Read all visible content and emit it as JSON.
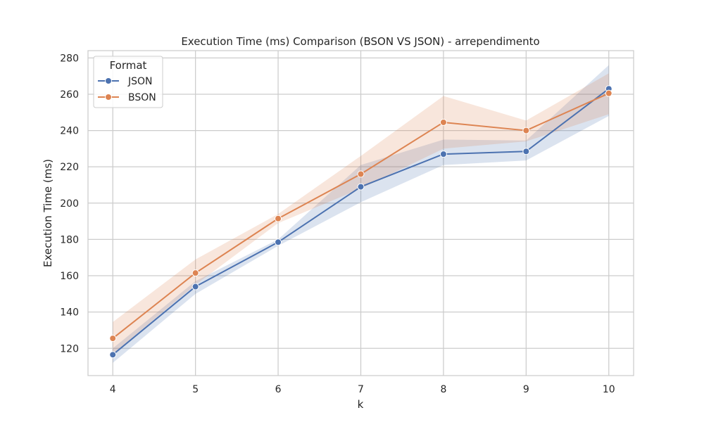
{
  "chart_data": {
    "type": "line",
    "title": "Execution Time (ms) Comparison (BSON VS JSON) - arrependimento",
    "xlabel": "k",
    "ylabel": "Execution Time (ms)",
    "x": [
      4,
      5,
      6,
      7,
      8,
      9,
      10
    ],
    "xlim": [
      3.7,
      10.3
    ],
    "ylim": [
      105,
      284
    ],
    "yticks": [
      120,
      140,
      160,
      180,
      200,
      220,
      240,
      260,
      280
    ],
    "grid": true,
    "legend": {
      "title": "Format",
      "placement": "top-left"
    },
    "series": [
      {
        "name": "JSON",
        "color": "#4c72b0",
        "values": [
          116.5,
          154,
          178.5,
          209,
          227,
          228.5,
          263
        ],
        "ci_lower": [
          112,
          150,
          176.5,
          200.5,
          221,
          223.5,
          248
        ],
        "ci_upper": [
          120,
          157,
          180,
          221,
          235,
          234.5,
          276
        ]
      },
      {
        "name": "BSON",
        "color": "#dd8452",
        "values": [
          125.5,
          161.5,
          191.5,
          216,
          244.5,
          240,
          260.5
        ],
        "ci_lower": [
          117,
          155,
          189,
          208,
          230,
          234,
          249
        ],
        "ci_upper": [
          134.5,
          169,
          194,
          226,
          259,
          245.5,
          271.5
        ]
      }
    ]
  }
}
